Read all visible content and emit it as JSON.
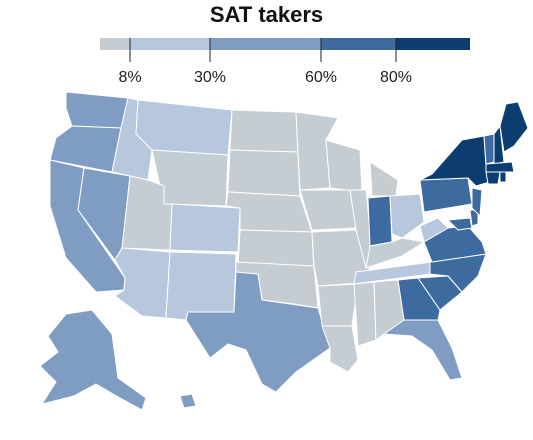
{
  "title": "SAT takers",
  "legend": {
    "bins": [
      {
        "from": 0,
        "to": 8,
        "color": "#c5ccd2"
      },
      {
        "from": 8,
        "to": 30,
        "color": "#b6c7de"
      },
      {
        "from": 30,
        "to": 60,
        "color": "#7f9cc3"
      },
      {
        "from": 60,
        "to": 80,
        "color": "#3d6b9f"
      },
      {
        "from": 80,
        "to": 100,
        "color": "#0b3d70"
      }
    ],
    "ticks": [
      {
        "value": 8,
        "label": "8%"
      },
      {
        "value": 30,
        "label": "30%"
      },
      {
        "value": 60,
        "label": "60%"
      },
      {
        "value": 80,
        "label": "80%"
      }
    ]
  },
  "colors": {
    "low": "#c5ccd2",
    "light": "#b6c7de",
    "mid": "#7f9cc3",
    "high": "#3d6b9f",
    "top": "#0b3d70",
    "border": "#ffffff"
  }
}
